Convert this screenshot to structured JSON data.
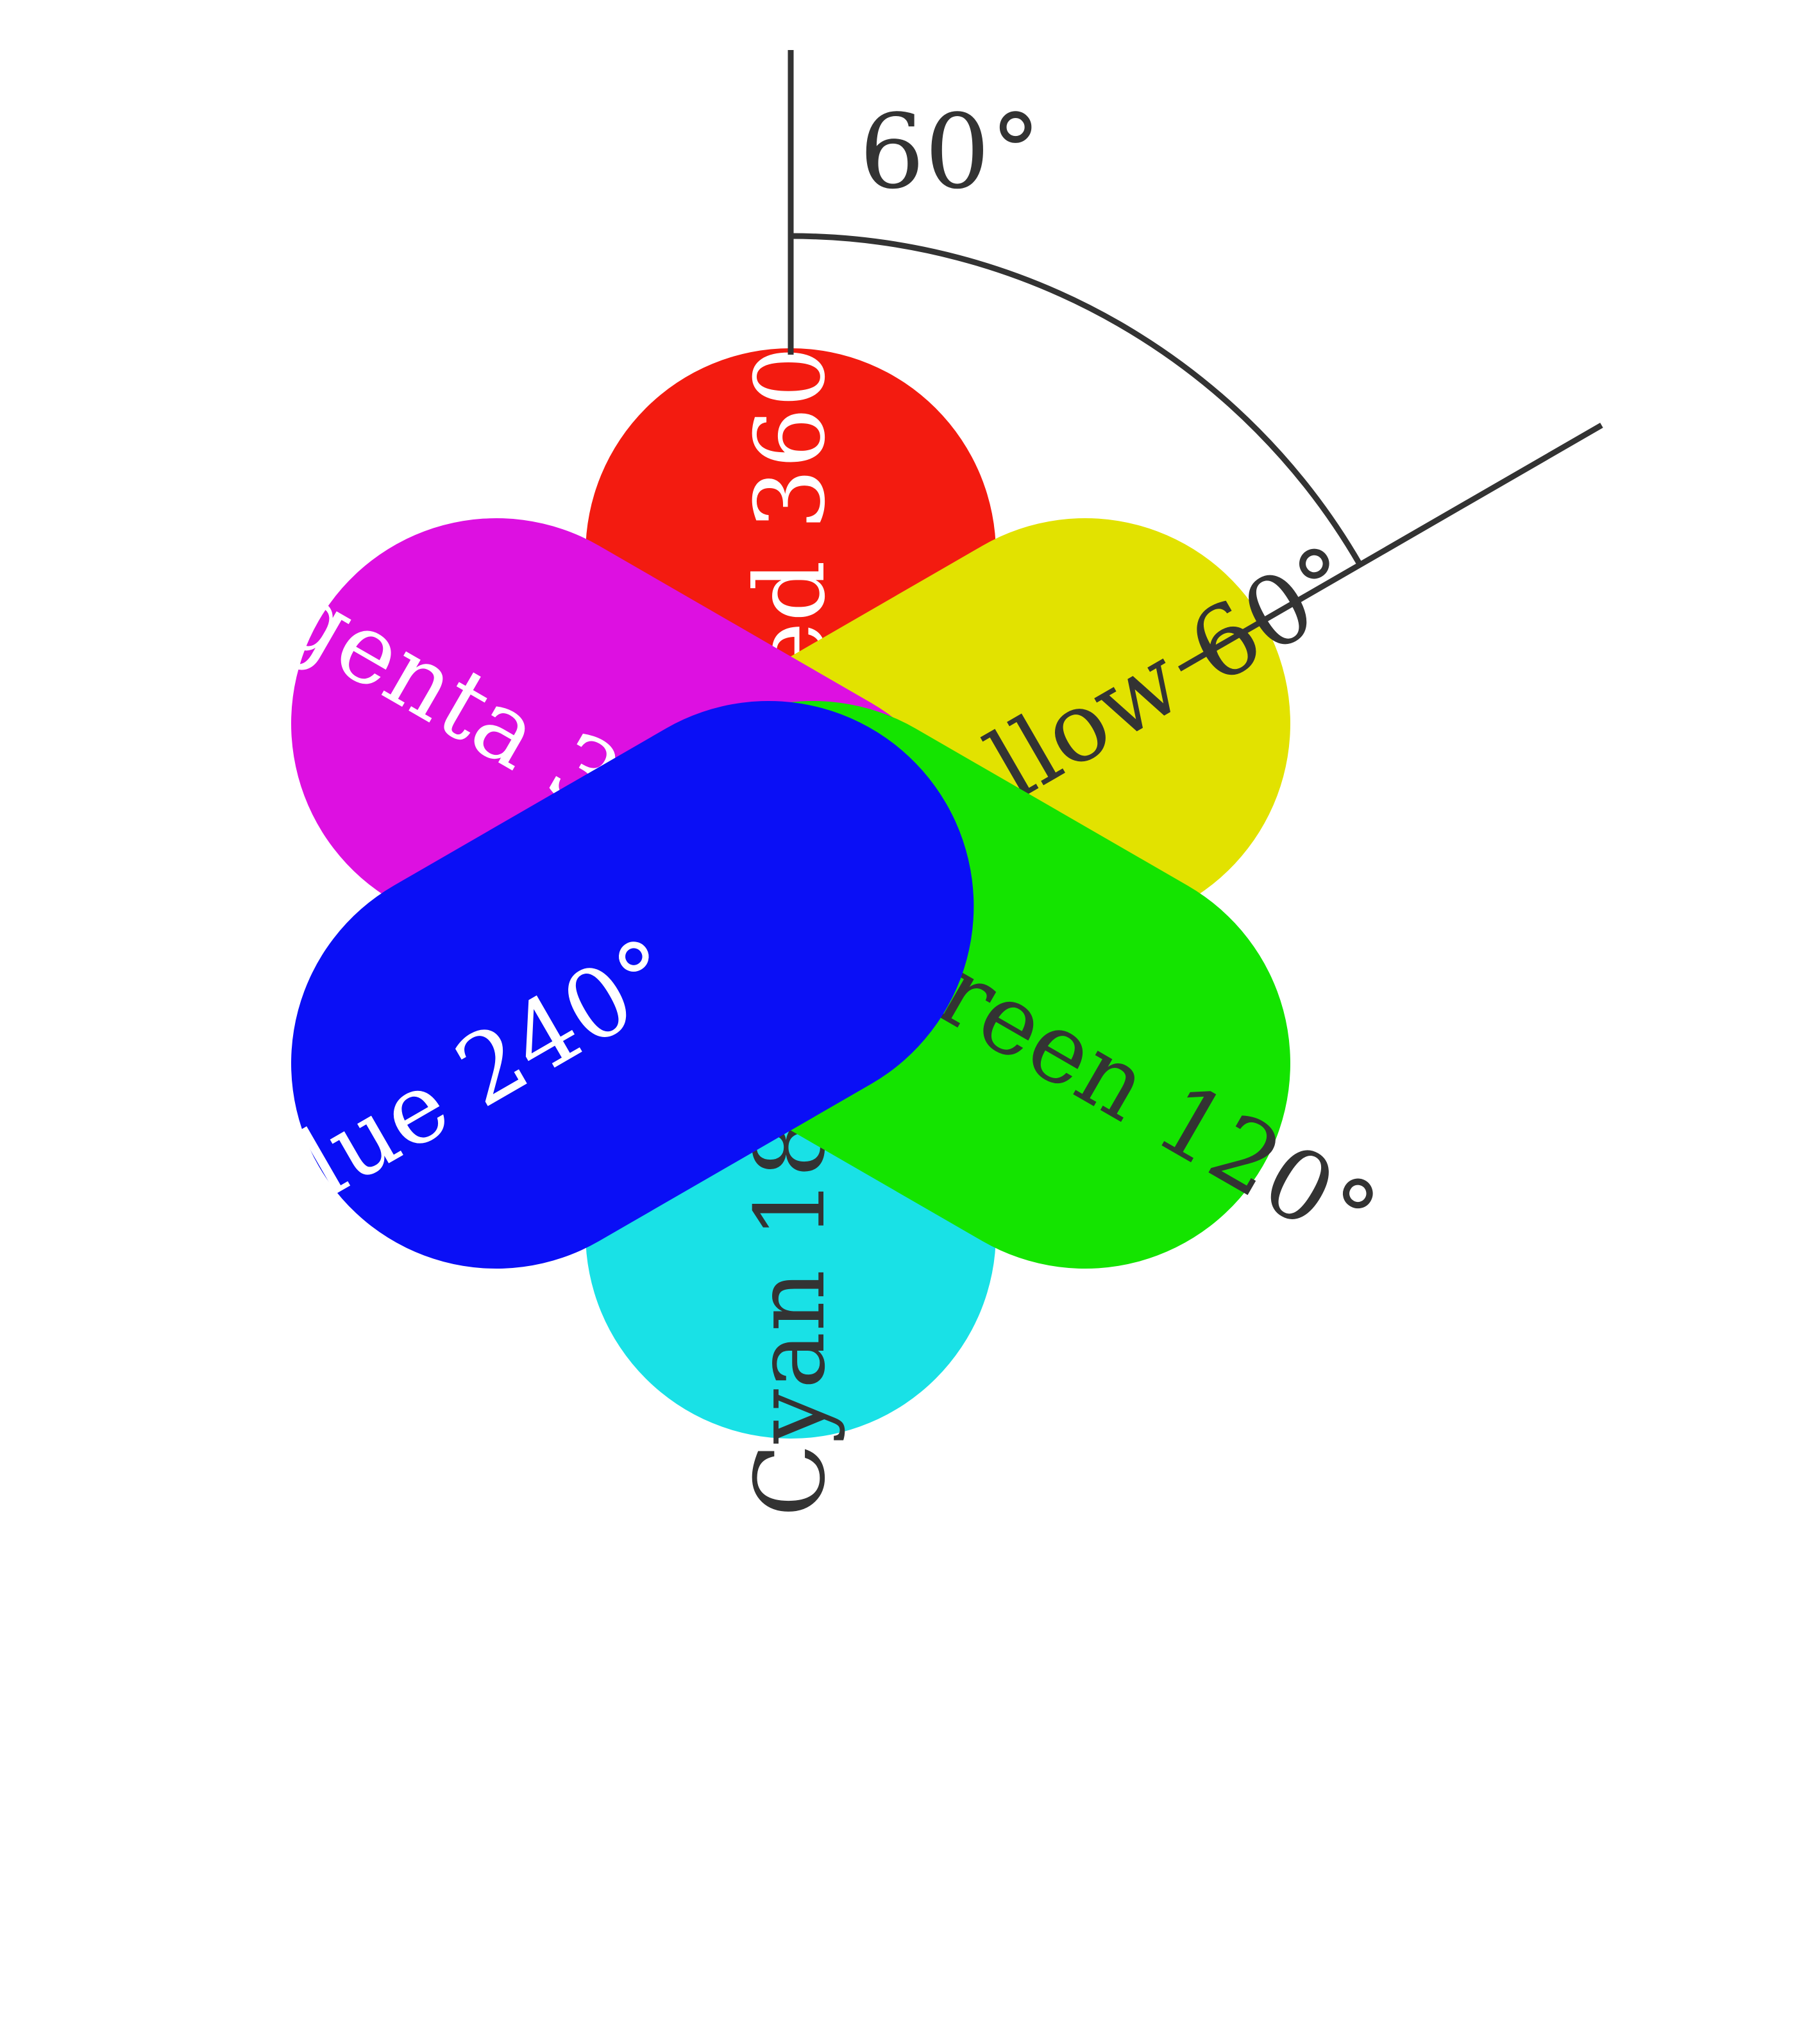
{
  "angle_marker": {
    "label": "60°",
    "degrees": 60,
    "line_color": "#333333"
  },
  "petals": [
    {
      "id": "red",
      "label": "Red 360°",
      "hue": 360,
      "color": "#f31b10",
      "text_color": "#ffffff"
    },
    {
      "id": "yellow",
      "label": "Yellow 60°",
      "hue": 60,
      "color": "#e2e200",
      "text_color": "#333333"
    },
    {
      "id": "magenta",
      "label": "Magenta 300°",
      "hue": 300,
      "color": "#dd10e1",
      "text_color": "#ffffff"
    },
    {
      "id": "cyan",
      "label": "Cyan 180°",
      "hue": 180,
      "color": "#19e1e6",
      "text_color": "#333333"
    },
    {
      "id": "green",
      "label": "Green 120°",
      "hue": 120,
      "color": "#14e400",
      "text_color": "#333333"
    },
    {
      "id": "blue",
      "label": "Blue 240°",
      "hue": 240,
      "color": "#0a0ff6",
      "text_color": "#ffffff"
    }
  ]
}
